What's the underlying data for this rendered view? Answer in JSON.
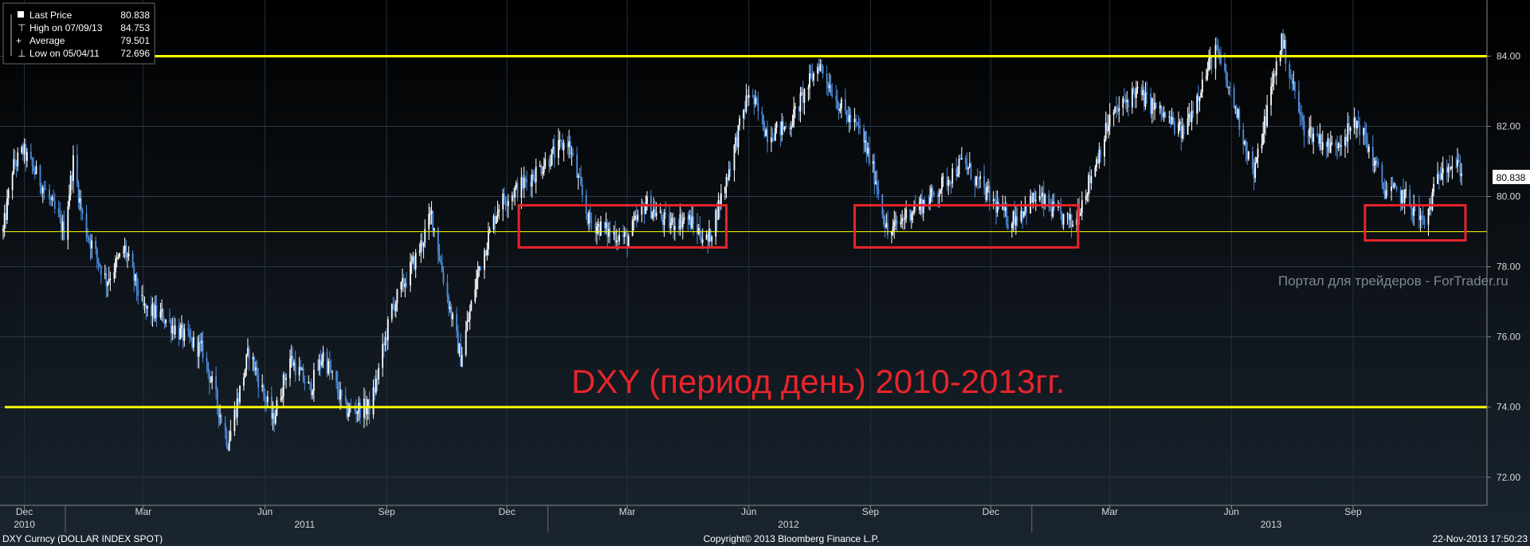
{
  "chart_data": {
    "type": "candlestick",
    "security": "DXY Curncy (DOLLAR INDEX SPOT)",
    "frequency": "daily",
    "annotation": "DXY (период день) 2010-2013гг.",
    "watermark": "Портал для трейдеров - ForTrader.ru",
    "legend": [
      {
        "label": "Last Price",
        "value": "80.838"
      },
      {
        "label": "High on 07/09/13",
        "value": "84.753"
      },
      {
        "label": "Average",
        "value": "79.501"
      },
      {
        "label": "Low on 05/04/11",
        "value": "72.696"
      }
    ],
    "last_price_tag": "80.838",
    "y_axis": {
      "min": 71.2,
      "max": 85.6,
      "ticks": [
        "84.00",
        "82.00",
        "80.00",
        "78.00",
        "76.00",
        "74.00",
        "72.00"
      ]
    },
    "x_axis": {
      "start": "2010-11-15",
      "end": "2013-11-22",
      "month_ticks": [
        {
          "label": "Dec",
          "date": "2010-12-01"
        },
        {
          "label": "Mar",
          "date": "2011-03-01"
        },
        {
          "label": "Jun",
          "date": "2011-06-01"
        },
        {
          "label": "Sep",
          "date": "2011-09-01"
        },
        {
          "label": "Dec",
          "date": "2011-12-01"
        },
        {
          "label": "Mar",
          "date": "2012-03-01"
        },
        {
          "label": "Jun",
          "date": "2012-06-01"
        },
        {
          "label": "Sep",
          "date": "2012-09-01"
        },
        {
          "label": "Dec",
          "date": "2012-12-01"
        },
        {
          "label": "Mar",
          "date": "2013-03-01"
        },
        {
          "label": "Jun",
          "date": "2013-06-01"
        },
        {
          "label": "Sep",
          "date": "2013-09-01"
        }
      ],
      "year_labels": [
        {
          "label": "2010",
          "date": "2010-12-01"
        },
        {
          "label": "2011",
          "date": "2011-07-01"
        },
        {
          "label": "2012",
          "date": "2012-07-01"
        },
        {
          "label": "2013",
          "date": "2013-07-01"
        }
      ],
      "year_separators": [
        "2011-01-01",
        "2012-01-01",
        "2013-01-01"
      ]
    },
    "horizontal_lines": [
      {
        "level": 84.0,
        "color": "#ffff00",
        "width": "thick"
      },
      {
        "level": 79.0,
        "color": "#ffff00",
        "width": "thin"
      },
      {
        "level": 74.0,
        "color": "#ffff00",
        "width": "thick"
      }
    ],
    "zones": [
      {
        "from": "2011-12-10",
        "to": "2012-05-15",
        "low": 78.55,
        "high": 79.75,
        "color": "#e8242b"
      },
      {
        "from": "2012-08-20",
        "to": "2013-02-05",
        "low": 78.55,
        "high": 79.75,
        "color": "#e8242b"
      },
      {
        "from": "2013-09-10",
        "to": "2013-11-25",
        "low": 78.75,
        "high": 79.75,
        "color": "#e8242b"
      }
    ],
    "price_path": [
      [
        "2010-11-15",
        79.0
      ],
      [
        "2010-11-22",
        80.8
      ],
      [
        "2010-11-30",
        81.3
      ],
      [
        "2010-12-15",
        80.3
      ],
      [
        "2010-12-31",
        79.0
      ],
      [
        "2011-01-07",
        81.0
      ],
      [
        "2011-01-15",
        79.2
      ],
      [
        "2011-02-01",
        77.6
      ],
      [
        "2011-02-15",
        78.5
      ],
      [
        "2011-03-01",
        76.8
      ],
      [
        "2011-03-15",
        76.6
      ],
      [
        "2011-04-01",
        76.0
      ],
      [
        "2011-04-15",
        75.6
      ],
      [
        "2011-05-04",
        73.0
      ],
      [
        "2011-05-20",
        75.6
      ],
      [
        "2011-06-07",
        73.6
      ],
      [
        "2011-06-20",
        75.4
      ],
      [
        "2011-07-05",
        74.5
      ],
      [
        "2011-07-15",
        75.5
      ],
      [
        "2011-08-01",
        73.9
      ],
      [
        "2011-08-20",
        74.0
      ],
      [
        "2011-09-05",
        76.8
      ],
      [
        "2011-09-25",
        78.4
      ],
      [
        "2011-10-05",
        79.5
      ],
      [
        "2011-10-15",
        77.5
      ],
      [
        "2011-10-27",
        75.4
      ],
      [
        "2011-11-10",
        78.0
      ],
      [
        "2011-11-25",
        79.8
      ],
      [
        "2011-12-15",
        80.4
      ],
      [
        "2012-01-05",
        81.2
      ],
      [
        "2012-01-16",
        81.6
      ],
      [
        "2012-02-01",
        79.3
      ],
      [
        "2012-02-15",
        79.0
      ],
      [
        "2012-03-01",
        78.8
      ],
      [
        "2012-03-15",
        79.8
      ],
      [
        "2012-04-01",
        79.2
      ],
      [
        "2012-04-15",
        79.4
      ],
      [
        "2012-05-01",
        78.7
      ],
      [
        "2012-05-15",
        80.5
      ],
      [
        "2012-06-01",
        83.0
      ],
      [
        "2012-06-15",
        81.8
      ],
      [
        "2012-07-01",
        82.0
      ],
      [
        "2012-07-24",
        83.8
      ],
      [
        "2012-08-10",
        82.5
      ],
      [
        "2012-08-25",
        81.8
      ],
      [
        "2012-09-05",
        80.5
      ],
      [
        "2012-09-14",
        78.9
      ],
      [
        "2012-10-01",
        79.6
      ],
      [
        "2012-10-15",
        79.9
      ],
      [
        "2012-11-10",
        81.0
      ],
      [
        "2012-11-25",
        80.2
      ],
      [
        "2012-12-15",
        79.3
      ],
      [
        "2013-01-05",
        80.0
      ],
      [
        "2013-01-20",
        79.5
      ],
      [
        "2013-02-01",
        79.2
      ],
      [
        "2013-02-15",
        80.6
      ],
      [
        "2013-03-01",
        82.2
      ],
      [
        "2013-03-20",
        83.0
      ],
      [
        "2013-04-05",
        82.5
      ],
      [
        "2013-04-25",
        81.8
      ],
      [
        "2013-05-20",
        84.2
      ],
      [
        "2013-06-05",
        82.4
      ],
      [
        "2013-06-18",
        80.6
      ],
      [
        "2013-07-09",
        84.5
      ],
      [
        "2013-07-25",
        82.0
      ],
      [
        "2013-08-15",
        81.4
      ],
      [
        "2013-09-05",
        82.1
      ],
      [
        "2013-09-25",
        80.2
      ],
      [
        "2013-10-10",
        80.0
      ],
      [
        "2013-10-25",
        79.2
      ],
      [
        "2013-11-08",
        81.0
      ],
      [
        "2013-11-22",
        80.8
      ]
    ],
    "footer": {
      "left": "DXY Curncy (DOLLAR INDEX SPOT)",
      "center": "Copyright© 2013 Bloomberg Finance L.P.",
      "right": "22-Nov-2013 17:50:23"
    },
    "colors": {
      "background_top": "#000000",
      "background_bottom": "#19232d",
      "up_candle": "#ffffff",
      "down_candle": "#4d8fe0",
      "level_line": "#ffff00",
      "zone": "#e8242b",
      "annotation": "#e8242b"
    }
  }
}
